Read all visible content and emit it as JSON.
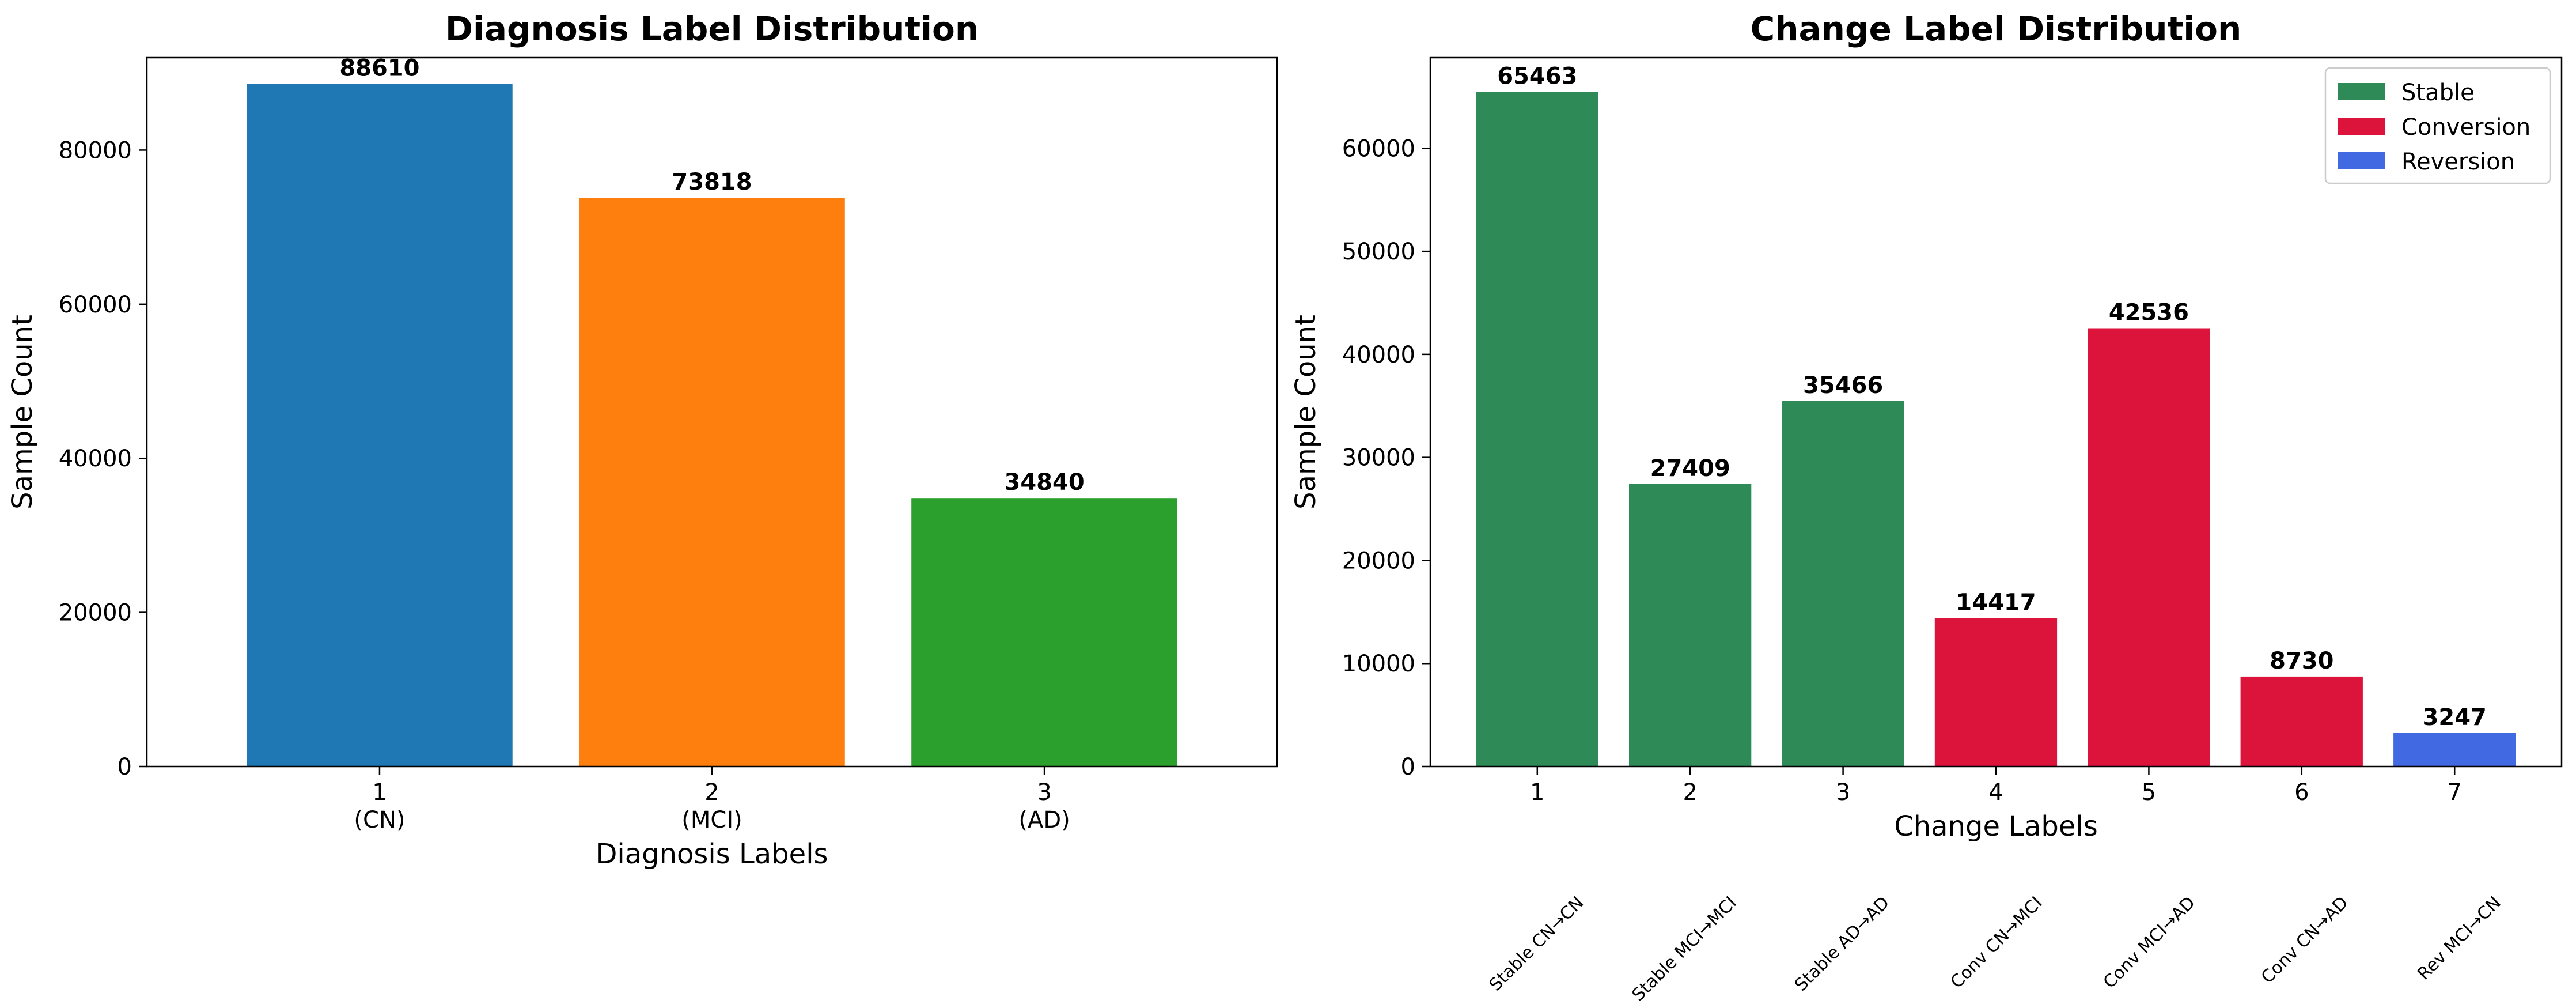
{
  "chart_data": [
    {
      "type": "bar",
      "title": "Diagnosis Label Distribution",
      "xlabel": "Diagnosis Labels",
      "ylabel": "Sample Count",
      "categories": [
        "1\n(CN)",
        "2\n(MCI)",
        "3\n(AD)"
      ],
      "values": [
        88610,
        73818,
        34840
      ],
      "colors": [
        "#1f77b4",
        "#ff7f0e",
        "#2ca02c"
      ],
      "ylim": [
        0,
        92000
      ],
      "yticks": [
        0,
        20000,
        40000,
        60000,
        80000
      ],
      "grid": false
    },
    {
      "type": "bar",
      "title": "Change Label Distribution",
      "xlabel": "Change Labels",
      "ylabel": "Sample Count",
      "categories": [
        "1",
        "2",
        "3",
        "4",
        "5",
        "6",
        "7"
      ],
      "subcategory_labels": [
        "Stable CN→CN",
        "Stable MCI→MCI",
        "Stable AD→AD",
        "Conv CN→MCI",
        "Conv MCI→AD",
        "Conv CN→AD",
        "Rev MCI→CN"
      ],
      "values": [
        65463,
        27409,
        35466,
        14417,
        42536,
        8730,
        3247
      ],
      "groups": [
        "Stable",
        "Stable",
        "Stable",
        "Conversion",
        "Conversion",
        "Conversion",
        "Reversion"
      ],
      "legend": [
        {
          "name": "Stable",
          "color": "#2e8b57"
        },
        {
          "name": "Conversion",
          "color": "#dc143c"
        },
        {
          "name": "Reversion",
          "color": "#4169e1"
        }
      ],
      "legend_position": "top-right",
      "ylim": [
        0,
        68800
      ],
      "yticks": [
        0,
        10000,
        20000,
        30000,
        40000,
        50000,
        60000
      ],
      "grid": false
    }
  ]
}
